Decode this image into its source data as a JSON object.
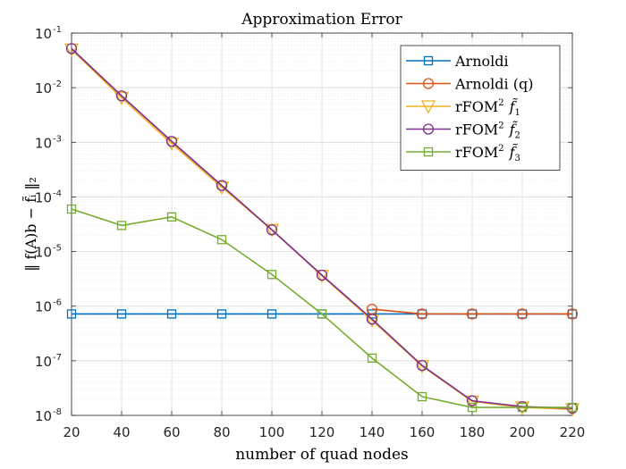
{
  "chart_data": {
    "type": "line",
    "title": "Approximation Error",
    "xlabel": "number of quad nodes",
    "ylabel": "‖ f(A)b − f̃ᵢ ‖₂",
    "y_scale": "log",
    "xlim": [
      20,
      220
    ],
    "ylim": [
      1e-08,
      0.1
    ],
    "x_ticks": [
      20,
      40,
      60,
      80,
      100,
      120,
      140,
      160,
      180,
      200,
      220
    ],
    "x_tick_labels": [
      "20",
      "40",
      "60",
      "80",
      "100",
      "120",
      "140",
      "160",
      "180",
      "200",
      "220"
    ],
    "y_ticks": [
      {
        "value": 1e-08,
        "base": "10",
        "exp": "-8"
      },
      {
        "value": 1e-07,
        "base": "10",
        "exp": "-7"
      },
      {
        "value": 1e-06,
        "base": "10",
        "exp": "-6"
      },
      {
        "value": 1e-05,
        "base": "10",
        "exp": "-5"
      },
      {
        "value": 0.0001,
        "base": "10",
        "exp": "-4"
      },
      {
        "value": 0.001,
        "base": "10",
        "exp": "-3"
      },
      {
        "value": 0.01,
        "base": "10",
        "exp": "-2"
      },
      {
        "value": 0.1,
        "base": "10",
        "exp": "-1"
      }
    ],
    "grid": true,
    "minor_grid": true,
    "legend_position": "top-right",
    "x": [
      20,
      40,
      60,
      80,
      100,
      120,
      140,
      160,
      180,
      200,
      220
    ],
    "series": [
      {
        "name": "Arnoldi",
        "legend_text": "Arnoldi",
        "legend_sup": "",
        "legend_func": "",
        "legend_sub": "",
        "color": "#0072BD",
        "marker": "square",
        "values": [
          7.2e-07,
          7.2e-07,
          7.2e-07,
          7.2e-07,
          7.2e-07,
          7.2e-07,
          7.2e-07,
          7.2e-07,
          7.2e-07,
          7.2e-07,
          7.2e-07
        ]
      },
      {
        "name": "Arnoldi (q)",
        "legend_text": "Arnoldi (q)",
        "legend_sup": "",
        "legend_func": "",
        "legend_sub": "",
        "color": "#D95319",
        "marker": "circle",
        "values": [
          null,
          null,
          null,
          null,
          null,
          null,
          8.8e-07,
          7.2e-07,
          7.2e-07,
          7.2e-07,
          7.2e-07
        ]
      },
      {
        "name": "rFOM² f̃₁",
        "legend_text": "rFOM",
        "legend_sup": "2",
        "legend_func": "f̃",
        "legend_sub": "1",
        "color": "#EDB120",
        "marker": "triangle-down",
        "values": [
          0.05,
          0.0065,
          0.00095,
          0.00015,
          2.5e-05,
          3.6e-06,
          5.5e-07,
          8e-08,
          1.8e-08,
          1.4e-08,
          1.3e-08
        ]
      },
      {
        "name": "rFOM² f̃₂",
        "legend_text": "rFOM",
        "legend_sup": "2",
        "legend_func": "f̃",
        "legend_sub": "2",
        "color": "#7E2F8E",
        "marker": "circle",
        "values": [
          0.052,
          0.0071,
          0.00104,
          0.000162,
          2.5e-05,
          3.7e-06,
          5.8e-07,
          8.2e-08,
          1.85e-08,
          1.45e-08,
          1.35e-08
        ]
      },
      {
        "name": "rFOM² f̃₃",
        "legend_text": "rFOM",
        "legend_sup": "2",
        "legend_func": "f̃",
        "legend_sub": "3",
        "color": "#77AC30",
        "marker": "square",
        "values": [
          6e-05,
          3e-05,
          4.3e-05,
          1.65e-05,
          3.8e-06,
          7.2e-07,
          1.12e-07,
          2.2e-08,
          1.4e-08,
          1.4e-08,
          1.4e-08
        ]
      }
    ]
  }
}
